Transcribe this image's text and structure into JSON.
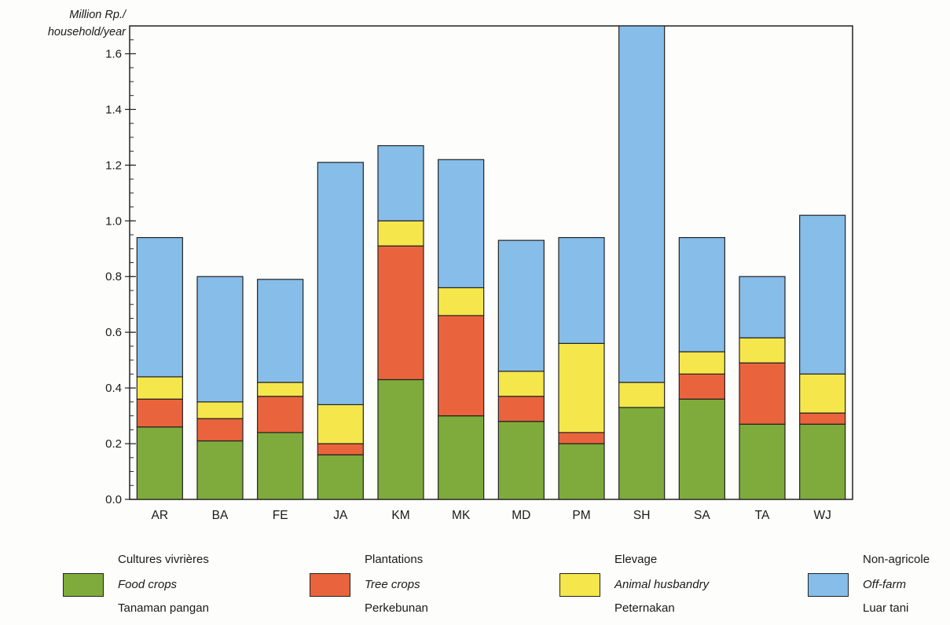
{
  "chart_data": {
    "type": "bar",
    "stacked": true,
    "ylabel": "Million Rp./\nhousehold/year",
    "ylabel_lines": [
      "Million Rp./",
      "household/year"
    ],
    "ylim": [
      0,
      1.7
    ],
    "yticks": [
      "0.0",
      "0.2",
      "0.4",
      "0.6",
      "0.8",
      "1.0",
      "1.2",
      "1.4",
      "1.6"
    ],
    "ytick_values": [
      0,
      0.2,
      0.4,
      0.6,
      0.8,
      1.0,
      1.2,
      1.4,
      1.6
    ],
    "categories": [
      "AR",
      "BA",
      "FE",
      "JA",
      "KM",
      "MK",
      "MD",
      "PM",
      "SH",
      "SA",
      "TA",
      "WJ"
    ],
    "series": [
      {
        "key": "food",
        "color": "#7fab3c",
        "values": [
          0.26,
          0.21,
          0.24,
          0.16,
          0.43,
          0.3,
          0.28,
          0.2,
          0.33,
          0.36,
          0.27,
          0.27
        ]
      },
      {
        "key": "tree",
        "color": "#e9643d",
        "values": [
          0.1,
          0.08,
          0.13,
          0.04,
          0.48,
          0.36,
          0.09,
          0.04,
          0.0,
          0.09,
          0.22,
          0.04
        ]
      },
      {
        "key": "animal",
        "color": "#f5e64c",
        "values": [
          0.08,
          0.06,
          0.05,
          0.14,
          0.09,
          0.1,
          0.09,
          0.32,
          0.09,
          0.08,
          0.09,
          0.14
        ]
      },
      {
        "key": "offfarm",
        "color": "#86bde9",
        "values": [
          0.5,
          0.45,
          0.37,
          0.87,
          0.27,
          0.46,
          0.47,
          0.38,
          1.28,
          0.41,
          0.22,
          0.57
        ]
      }
    ],
    "grid": false,
    "legend_position": "bottom"
  },
  "legend": [
    {
      "fr": "Cultures vivrières",
      "en": "Food crops",
      "id": "Tanaman pangan",
      "color": "#7fab3c"
    },
    {
      "fr": "Plantations",
      "en": "Tree crops",
      "id": "Perkebunan",
      "color": "#e9643d"
    },
    {
      "fr": "Elevage",
      "en": "Animal husbandry",
      "id": "Peternakan",
      "color": "#f5e64c"
    },
    {
      "fr": "Non-agricole",
      "en": "Off-farm",
      "id": "Luar tani",
      "color": "#86bde9"
    }
  ]
}
